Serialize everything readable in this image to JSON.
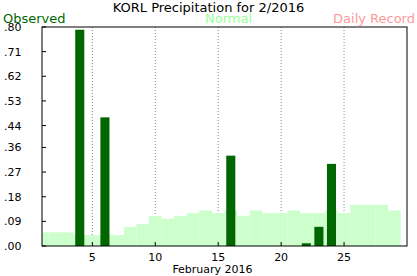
{
  "chart_data": {
    "type": "bar",
    "title": "KORL Precipitation for 2/2016",
    "x_label": "February 2016",
    "x": [
      1,
      2,
      3,
      4,
      5,
      6,
      7,
      8,
      9,
      10,
      11,
      12,
      13,
      14,
      15,
      16,
      17,
      18,
      19,
      20,
      21,
      22,
      23,
      24,
      25,
      26,
      27,
      28,
      29
    ],
    "series": [
      {
        "name": "Normal",
        "color": "#ccffcc",
        "type": "bar",
        "values": [
          0.05,
          0.05,
          0.05,
          0.04,
          0.04,
          0.04,
          0.04,
          0.07,
          0.08,
          0.11,
          0.1,
          0.11,
          0.12,
          0.13,
          0.12,
          0.13,
          0.11,
          0.13,
          0.12,
          0.12,
          0.13,
          0.12,
          0.12,
          0.13,
          0.12,
          0.15,
          0.15,
          0.15,
          0.13
        ]
      },
      {
        "name": "Observed",
        "color": "#006600",
        "type": "bar",
        "values": [
          0,
          0,
          0,
          0.79,
          0,
          0.47,
          0,
          0,
          0,
          0,
          0,
          0,
          0,
          0,
          0,
          0.33,
          0,
          0,
          0,
          0,
          0,
          0.01,
          0.07,
          0.3,
          0,
          0,
          0,
          0,
          0
        ]
      },
      {
        "name": "Daily Record",
        "color": "#ff9999",
        "type": "bar",
        "values": [
          null,
          null,
          null,
          null,
          null,
          null,
          null,
          null,
          null,
          null,
          null,
          null,
          null,
          null,
          null,
          null,
          null,
          null,
          null,
          null,
          null,
          null,
          null,
          null,
          null,
          null,
          null,
          null,
          null
        ]
      }
    ],
    "xlim": [
      1,
      30
    ],
    "xticks": [
      5,
      10,
      15,
      20,
      25
    ],
    "ylim": [
      0,
      0.8
    ],
    "yticks": [
      {
        "value": 0,
        "label": ".00"
      },
      {
        "value": 0.09,
        "label": ".09"
      },
      {
        "value": 0.18,
        "label": ".18"
      },
      {
        "value": 0.27,
        "label": ".27"
      },
      {
        "value": 0.36,
        "label": ".36"
      },
      {
        "value": 0.44,
        "label": ".44"
      },
      {
        "value": 0.53,
        "label": ".53"
      },
      {
        "value": 0.62,
        "label": ".62"
      },
      {
        "value": 0.71,
        "label": ".71"
      },
      {
        "value": 0.8,
        "label": ".80"
      }
    ],
    "grid": true,
    "legend": "top"
  }
}
